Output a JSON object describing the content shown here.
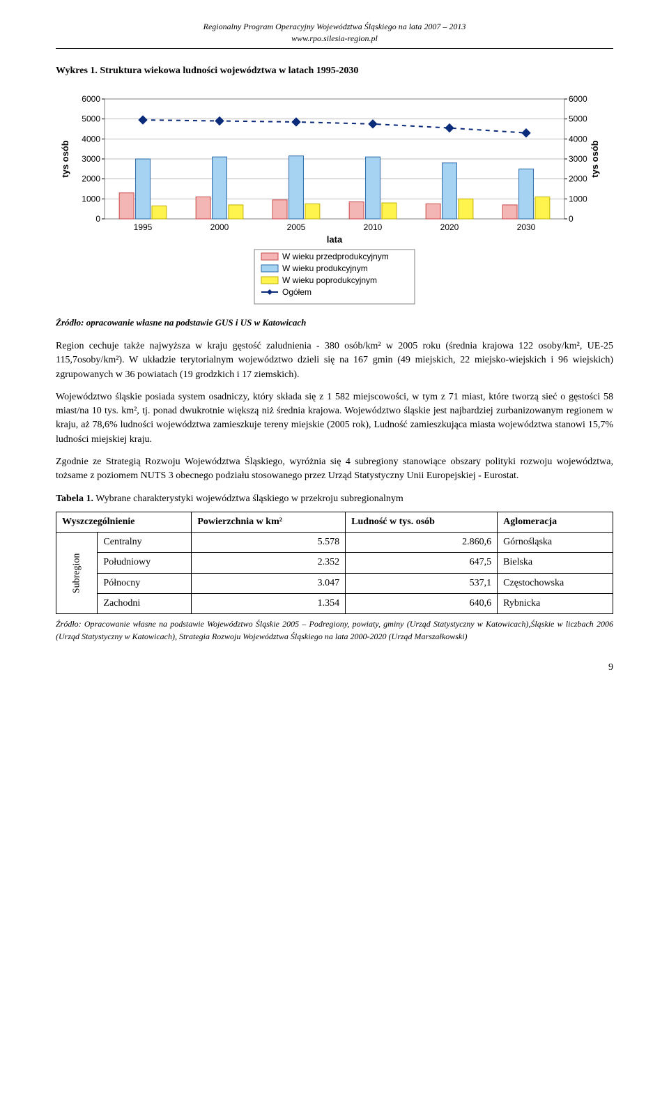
{
  "header": {
    "line1": "Regionalny Program Operacyjny Województwa Śląskiego na lata 2007 – 2013",
    "line2": "www.rpo.silesia-region.pl"
  },
  "chart_title_prefix": "Wykres 1.",
  "chart_title_rest": "Struktura wiekowa ludności województwa w latach 1995-2030",
  "chart": {
    "type": "bar+line",
    "years": [
      "1995",
      "2000",
      "2005",
      "2010",
      "2020",
      "2030"
    ],
    "xlabel": "lata",
    "ylabel_left": "tys osób",
    "ylabel_right": "tys osób",
    "ylim": [
      0,
      6000
    ],
    "ytick_step": 1000,
    "series": {
      "pre": {
        "label": "W wieku przedprodukcyjnym",
        "color": "#f4b5b5",
        "stroke": "#c94848",
        "values": [
          1300,
          1100,
          950,
          850,
          750,
          700
        ]
      },
      "prod": {
        "label": "W wieku produkcyjnym",
        "color": "#a7d3f2",
        "stroke": "#2e6aa8",
        "values": [
          3000,
          3100,
          3150,
          3100,
          2800,
          2500
        ]
      },
      "post": {
        "label": "W wieku poprodukcyjnym",
        "color": "#fff34d",
        "stroke": "#c2b100",
        "values": [
          650,
          700,
          750,
          800,
          1000,
          1100
        ]
      }
    },
    "total": {
      "label": "Ogółem",
      "color": "#0a2a7a",
      "values": [
        4950,
        4900,
        4850,
        4750,
        4550,
        4300
      ],
      "dash": "6 6"
    },
    "grid_color": "#bfbfbf",
    "background": "#ffffff",
    "frame_color": "#808080",
    "legend_border": "#808080",
    "font_family": "Arial",
    "label_fontsize": 13
  },
  "source_line": "Źródło: opracowanie własne na podstawie GUS i US w Katowicach",
  "para1": "Region cechuje także najwyższa w kraju gęstość zaludnienia - 380 osób/km² w 2005 roku (średnia krajowa 122 osoby/km², UE-25 115,7osoby/km²). W układzie terytorialnym województwo dzieli się na 167 gmin (49 miejskich, 22 miejsko-wiejskich i 96 wiejskich) zgrupowanych w 36 powiatach (19 grodzkich i 17 ziemskich).",
  "para2": "Województwo śląskie posiada system osadniczy, który składa się z 1 582 miejscowości, w tym z 71 miast, które tworzą sieć o gęstości 58 miast/na 10 tys. km², tj. ponad dwukrotnie większą niż średnia krajowa. Województwo śląskie jest najbardziej zurbanizowanym regionem w kraju, aż 78,6% ludności województwa zamieszkuje tereny miejskie (2005 rok), Ludność zamieszkująca miasta województwa stanowi 15,7% ludności miejskiej kraju.",
  "para3": "Zgodnie ze Strategią Rozwoju Województwa Śląskiego, wyróżnia się 4 subregiony stanowiące obszary polityki rozwoju województwa, tożsame z poziomem NUTS 3 obecnego podziału stosowanego przez Urząd Statystyczny Unii Europejskiej - Eurostat.",
  "table_title_prefix": "Tabela 1.",
  "table_title_rest": "Wybrane charakterystyki województwa śląskiego w przekroju subregionalnym",
  "table": {
    "columns": [
      "Wyszczególnienie",
      "Powierzchnia w km²",
      "Ludność w tys. osób",
      "Aglomeracja"
    ],
    "sidelabel": "Subregion",
    "rows": [
      {
        "name": "Centralny",
        "area": "5.578",
        "pop": "2.860,6",
        "agg": "Górnośląska"
      },
      {
        "name": "Południowy",
        "area": "2.352",
        "pop": "647,5",
        "agg": "Bielska"
      },
      {
        "name": "Północny",
        "area": "3.047",
        "pop": "537,1",
        "agg": "Częstochowska"
      },
      {
        "name": "Zachodni",
        "area": "1.354",
        "pop": "640,6",
        "agg": "Rybnicka"
      }
    ],
    "col_align": [
      "left",
      "right",
      "right",
      "left"
    ]
  },
  "table_source": "Źródło: Opracowanie własne na podstawie Województwo Śląskie 2005 – Podregiony, powiaty, gminy (Urząd Statystyczny w Katowicach),Śląskie w liczbach 2006 (Urząd Statystyczny w Katowicach), Strategia Rozwoju Województwa Śląskiego na lata 2000-2020 (Urząd Marszałkowski)",
  "page_number": "9"
}
